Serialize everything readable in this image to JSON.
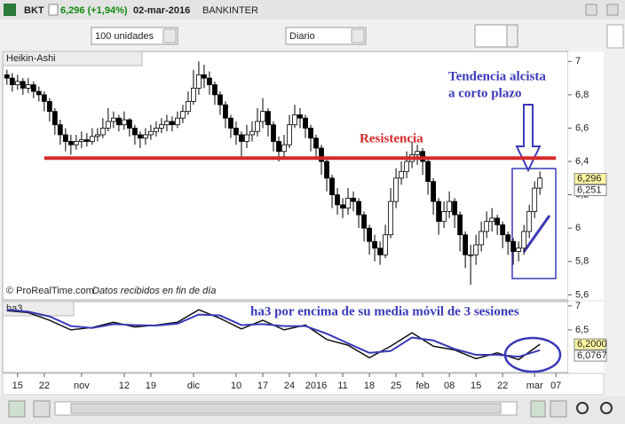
{
  "window": {
    "symbol": "BKT",
    "quote": "6,296 (+1,94%)",
    "date": "02-mar-2016",
    "name": "BANKINTER"
  },
  "toolbar": {
    "quantity": "100 unidades",
    "period": "Diario"
  },
  "chart_data": [
    {
      "type": "candlestick",
      "title": "Heikin-Ashi",
      "candles": [
        [
          6.92,
          6.95,
          6.86,
          6.9
        ],
        [
          6.9,
          6.93,
          6.82,
          6.86
        ],
        [
          6.86,
          6.92,
          6.83,
          6.88
        ],
        [
          6.88,
          6.9,
          6.8,
          6.84
        ],
        [
          6.84,
          6.9,
          6.81,
          6.86
        ],
        [
          6.86,
          6.88,
          6.78,
          6.82
        ],
        [
          6.82,
          6.85,
          6.76,
          6.8
        ],
        [
          6.8,
          6.82,
          6.7,
          6.76
        ],
        [
          6.76,
          6.78,
          6.64,
          6.7
        ],
        [
          6.7,
          6.72,
          6.56,
          6.62
        ],
        [
          6.62,
          6.65,
          6.5,
          6.56
        ],
        [
          6.56,
          6.6,
          6.46,
          6.52
        ],
        [
          6.52,
          6.56,
          6.44,
          6.5
        ],
        [
          6.5,
          6.56,
          6.47,
          6.52
        ],
        [
          6.52,
          6.58,
          6.48,
          6.53
        ],
        [
          6.53,
          6.57,
          6.49,
          6.52
        ],
        [
          6.52,
          6.6,
          6.5,
          6.55
        ],
        [
          6.55,
          6.6,
          6.52,
          6.56
        ],
        [
          6.56,
          6.66,
          6.54,
          6.6
        ],
        [
          6.6,
          6.72,
          6.58,
          6.64
        ],
        [
          6.64,
          6.7,
          6.6,
          6.66
        ],
        [
          6.66,
          6.68,
          6.58,
          6.62
        ],
        [
          6.62,
          6.7,
          6.59,
          6.65
        ],
        [
          6.65,
          6.66,
          6.55,
          6.6
        ],
        [
          6.6,
          6.62,
          6.5,
          6.56
        ],
        [
          6.56,
          6.58,
          6.48,
          6.54
        ],
        [
          6.54,
          6.6,
          6.5,
          6.56
        ],
        [
          6.56,
          6.62,
          6.53,
          6.58
        ],
        [
          6.58,
          6.64,
          6.55,
          6.6
        ],
        [
          6.6,
          6.66,
          6.57,
          6.62
        ],
        [
          6.62,
          6.68,
          6.58,
          6.64
        ],
        [
          6.64,
          6.67,
          6.58,
          6.62
        ],
        [
          6.62,
          6.7,
          6.6,
          6.66
        ],
        [
          6.66,
          6.74,
          6.63,
          6.7
        ],
        [
          6.7,
          6.82,
          6.68,
          6.76
        ],
        [
          6.76,
          6.95,
          6.74,
          6.84
        ],
        [
          6.84,
          7.0,
          6.8,
          6.92
        ],
        [
          6.92,
          6.98,
          6.84,
          6.9
        ],
        [
          6.9,
          6.94,
          6.8,
          6.86
        ],
        [
          6.86,
          6.88,
          6.74,
          6.8
        ],
        [
          6.8,
          6.82,
          6.68,
          6.74
        ],
        [
          6.74,
          6.76,
          6.6,
          6.66
        ],
        [
          6.66,
          6.68,
          6.54,
          6.6
        ],
        [
          6.6,
          6.64,
          6.5,
          6.56
        ],
        [
          6.56,
          6.58,
          6.42,
          6.52
        ],
        [
          6.52,
          6.62,
          6.48,
          6.56
        ],
        [
          6.56,
          6.64,
          6.52,
          6.58
        ],
        [
          6.58,
          6.72,
          6.55,
          6.64
        ],
        [
          6.64,
          6.78,
          6.6,
          6.7
        ],
        [
          6.7,
          6.72,
          6.55,
          6.62
        ],
        [
          6.62,
          6.64,
          6.46,
          6.52
        ],
        [
          6.52,
          6.55,
          6.4,
          6.46
        ],
        [
          6.46,
          6.56,
          6.42,
          6.5
        ],
        [
          6.5,
          6.68,
          6.48,
          6.62
        ],
        [
          6.62,
          6.74,
          6.6,
          6.68
        ],
        [
          6.68,
          6.72,
          6.6,
          6.66
        ],
        [
          6.66,
          6.68,
          6.54,
          6.6
        ],
        [
          6.6,
          6.62,
          6.46,
          6.54
        ],
        [
          6.54,
          6.56,
          6.42,
          6.48
        ],
        [
          6.48,
          6.5,
          6.32,
          6.4
        ],
        [
          6.4,
          6.42,
          6.22,
          6.3
        ],
        [
          6.3,
          6.32,
          6.12,
          6.2
        ],
        [
          6.2,
          6.24,
          6.08,
          6.14
        ],
        [
          6.14,
          6.18,
          6.06,
          6.12
        ],
        [
          6.12,
          6.24,
          6.08,
          6.18
        ],
        [
          6.18,
          6.22,
          6.1,
          6.16
        ],
        [
          6.16,
          6.18,
          6.0,
          6.08
        ],
        [
          6.08,
          6.1,
          5.92,
          6.0
        ],
        [
          6.0,
          6.02,
          5.84,
          5.92
        ],
        [
          5.92,
          5.96,
          5.8,
          5.88
        ],
        [
          5.88,
          5.92,
          5.78,
          5.84
        ],
        [
          5.84,
          6.02,
          5.82,
          5.96
        ],
        [
          5.96,
          6.24,
          5.94,
          6.16
        ],
        [
          6.16,
          6.36,
          6.12,
          6.3
        ],
        [
          6.3,
          6.4,
          6.26,
          6.34
        ],
        [
          6.34,
          6.46,
          6.3,
          6.4
        ],
        [
          6.4,
          6.52,
          6.36,
          6.44
        ],
        [
          6.44,
          6.5,
          6.38,
          6.46
        ],
        [
          6.46,
          6.48,
          6.32,
          6.4
        ],
        [
          6.4,
          6.42,
          6.2,
          6.28
        ],
        [
          6.28,
          6.3,
          6.08,
          6.16
        ],
        [
          6.16,
          6.18,
          5.96,
          6.04
        ],
        [
          6.04,
          6.16,
          6.0,
          6.1
        ],
        [
          6.1,
          6.22,
          6.06,
          6.16
        ],
        [
          6.16,
          6.18,
          6.0,
          6.08
        ],
        [
          6.08,
          6.1,
          5.86,
          5.96
        ],
        [
          5.96,
          5.98,
          5.76,
          5.84
        ],
        [
          5.84,
          5.9,
          5.66,
          5.84
        ],
        [
          5.84,
          5.96,
          5.78,
          5.9
        ],
        [
          5.9,
          6.04,
          5.86,
          5.98
        ],
        [
          5.98,
          6.1,
          5.94,
          6.04
        ],
        [
          6.04,
          6.12,
          5.98,
          6.06
        ],
        [
          6.06,
          6.08,
          5.96,
          6.02
        ],
        [
          6.02,
          6.04,
          5.88,
          5.96
        ],
        [
          5.96,
          5.98,
          5.84,
          5.92
        ],
        [
          5.92,
          5.94,
          5.78,
          5.86
        ],
        [
          5.86,
          5.92,
          5.8,
          5.88
        ],
        [
          5.88,
          6.02,
          5.84,
          5.98
        ],
        [
          5.98,
          6.14,
          5.94,
          6.1
        ],
        [
          6.1,
          6.28,
          6.06,
          6.24
        ],
        [
          6.24,
          6.34,
          6.2,
          6.3
        ]
      ],
      "xlim": [
        -1.3,
        105.3
      ],
      "xticks": [
        {
          "value": 2,
          "label": "15"
        },
        {
          "value": 7,
          "label": "22"
        },
        {
          "value": 14,
          "label": "nov"
        },
        {
          "value": 22,
          "label": "12"
        },
        {
          "value": 27,
          "label": "19"
        },
        {
          "value": 35,
          "label": "dic"
        },
        {
          "value": 43,
          "label": "10"
        },
        {
          "value": 48,
          "label": "17"
        },
        {
          "value": 53,
          "label": "24"
        },
        {
          "value": 58,
          "label": "2016"
        },
        {
          "value": 63,
          "label": "11"
        },
        {
          "value": 68,
          "label": "18"
        },
        {
          "value": 73,
          "label": "25"
        },
        {
          "value": 78,
          "label": "feb"
        },
        {
          "value": 83,
          "label": "08"
        },
        {
          "value": 88,
          "label": "15"
        },
        {
          "value": 93,
          "label": "22"
        },
        {
          "value": 99,
          "label": "mar"
        },
        {
          "value": 103,
          "label": "07"
        }
      ],
      "ylim": [
        5.57,
        7.06
      ],
      "yticks": [
        7,
        {
          "value": 6.8,
          "label": "6,8"
        },
        {
          "value": 6.6,
          "label": "6,6"
        },
        {
          "value": 6.4,
          "label": "6,4"
        },
        {
          "value": 6.2,
          "label": "6,2"
        },
        6,
        {
          "value": 5.8,
          "label": "5,8"
        },
        {
          "value": 5.6,
          "label": "5,6"
        }
      ],
      "last_values": [
        {
          "value": 6.296,
          "label": "6,296"
        },
        {
          "value": 6.251,
          "label": "6,251"
        }
      ],
      "resistance": {
        "label": "Resistencia",
        "value": 6.42,
        "color": "#d42a2a"
      },
      "annotations": [
        "Tendencia alcista",
        "a corto plazo"
      ],
      "copyright": "© ProRealTime.com",
      "source_note": "Datos recibidos en fin de día"
    },
    {
      "type": "line",
      "title": "ha3",
      "x": [
        0,
        4,
        8,
        12,
        16,
        20,
        24,
        28,
        32,
        36,
        40,
        44,
        48,
        52,
        56,
        60,
        64,
        68,
        72,
        76,
        80,
        84,
        88,
        92,
        96,
        100
      ],
      "series": [
        {
          "color": "#111111",
          "values": [
            6.9,
            6.86,
            6.7,
            6.5,
            6.55,
            6.66,
            6.56,
            6.6,
            6.66,
            6.92,
            6.74,
            6.52,
            6.7,
            6.5,
            6.6,
            6.3,
            6.18,
            5.92,
            6.16,
            6.44,
            6.16,
            6.08,
            5.9,
            6.02,
            5.88,
            6.2
          ]
        },
        {
          "color": "#3a3ab8",
          "values": [
            6.92,
            6.88,
            6.78,
            6.58,
            6.54,
            6.62,
            6.6,
            6.59,
            6.63,
            6.82,
            6.8,
            6.6,
            6.62,
            6.58,
            6.58,
            6.42,
            6.22,
            6.02,
            6.06,
            6.34,
            6.28,
            6.1,
            5.98,
            5.98,
            5.94,
            6.0767
          ]
        }
      ],
      "ylim": [
        5.61,
        7.09
      ],
      "yticks": [
        7,
        {
          "value": 6.5,
          "label": "6,5"
        }
      ],
      "last_values": [
        {
          "value": 6.2,
          "label": "6,2000"
        },
        {
          "value": 6.0767,
          "label": "6,0767"
        }
      ],
      "annotation": "ha3 por encima de su media móvil de 3 sesiones"
    }
  ]
}
